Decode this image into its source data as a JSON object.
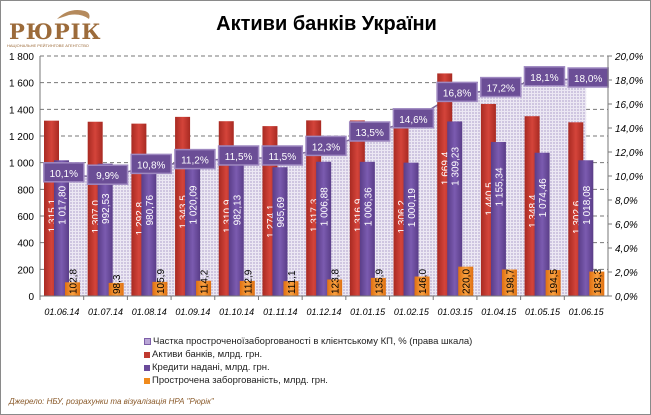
{
  "logo": {
    "word": "РЮРІК",
    "subtitle": "НАЦІОНАЛЬНЕ РЕЙТИНГОВЕ АГЕНТСТВО"
  },
  "source": "Джерело: НБУ, розрахунки  та візуалізація НРА \"Рюрік\"",
  "chart_data": {
    "type": "bar",
    "title": "Активи банків України",
    "categories": [
      "01.06.14",
      "01.07.14",
      "01.08.14",
      "01.09.14",
      "01.10.14",
      "01.11.14",
      "01.12.14",
      "01.01.15",
      "01.02.15",
      "01.03.15",
      "01.04.15",
      "01.05.15",
      "01.06.15"
    ],
    "ylim": [
      0,
      1800
    ],
    "yticks": [
      0,
      200,
      400,
      600,
      800,
      1000,
      1200,
      1400,
      1600,
      1800
    ],
    "ytick_labels": [
      "0",
      "200",
      "400",
      "600",
      "800",
      "1 000",
      "1 200",
      "1 400",
      "1 600",
      "1 800"
    ],
    "y2lim": [
      0,
      20
    ],
    "y2ticks": [
      0,
      2,
      4,
      6,
      8,
      10,
      12,
      14,
      16,
      18,
      20
    ],
    "y2tick_labels": [
      "0,0%",
      "2,0%",
      "4,0%",
      "6,0%",
      "8,0%",
      "10,0%",
      "12,0%",
      "14,0%",
      "16,0%",
      "18,0%",
      "20,0%"
    ],
    "grid": true,
    "legend_position": "bottom",
    "series": [
      {
        "name": "Частка простроченоїзаборгованості в клієнтському КП, % (права шкала)",
        "type": "area",
        "axis": "right",
        "color": "#7d5fa8",
        "values": [
          10.1,
          9.9,
          10.8,
          11.2,
          11.5,
          11.5,
          12.3,
          13.5,
          14.6,
          16.8,
          17.2,
          18.1,
          18.0
        ],
        "labels": [
          "10,1%",
          "9,9%",
          "10,8%",
          "11,2%",
          "11,5%",
          "11,5%",
          "12,3%",
          "13,5%",
          "14,6%",
          "16,8%",
          "17,2%",
          "18,1%",
          "18,0%"
        ]
      },
      {
        "name": "Активи банків, млрд. грн.",
        "type": "bar",
        "axis": "left",
        "color": "#c0392f",
        "values": [
          1315.1,
          1307.0,
          1292.8,
          1343.5,
          1310.9,
          1274.1,
          1317.3,
          1316.9,
          1306.2,
          1669.4,
          1440.5,
          1348.4,
          1302.6
        ],
        "labels": [
          "1 315,1",
          "1 307,0",
          "1 292,8",
          "1 343,5",
          "1 310,9",
          "1 274,1",
          "1 317,3",
          "1 316,9",
          "1 306,2",
          "1 669,4",
          "1 440,5",
          "1 348,4",
          "1 302,6"
        ]
      },
      {
        "name": "Кредити надані, млрд. грн.",
        "type": "bar",
        "axis": "left",
        "color": "#6a4a9a",
        "values": [
          1017.8,
          992.53,
          980.76,
          1020.09,
          982.13,
          965.69,
          1006.88,
          1006.36,
          1000.19,
          1309.23,
          1155.34,
          1074.46,
          1018.08
        ],
        "labels": [
          "1 017,80",
          "992,53",
          "980,76",
          "1 020,09",
          "982,13",
          "965,69",
          "1 006,88",
          "1 006,36",
          "1 000,19",
          "1 309,23",
          "1 155,34",
          "1 074,46",
          "1 018,08"
        ]
      },
      {
        "name": "Прострочена заборгованість, млрд. грн.",
        "type": "bar",
        "axis": "left",
        "color": "#f08a1c",
        "values": [
          102.8,
          98.3,
          105.9,
          114.2,
          112.9,
          111.1,
          123.8,
          135.9,
          146.0,
          220.0,
          198.7,
          194.5,
          183.3
        ],
        "labels": [
          "102,8",
          "98,3",
          "105,9",
          "114,2",
          "112,9",
          "111,1",
          "123,8",
          "135,9",
          "146,0",
          "220,0",
          "198,7",
          "194,5",
          "183,3"
        ]
      }
    ]
  }
}
